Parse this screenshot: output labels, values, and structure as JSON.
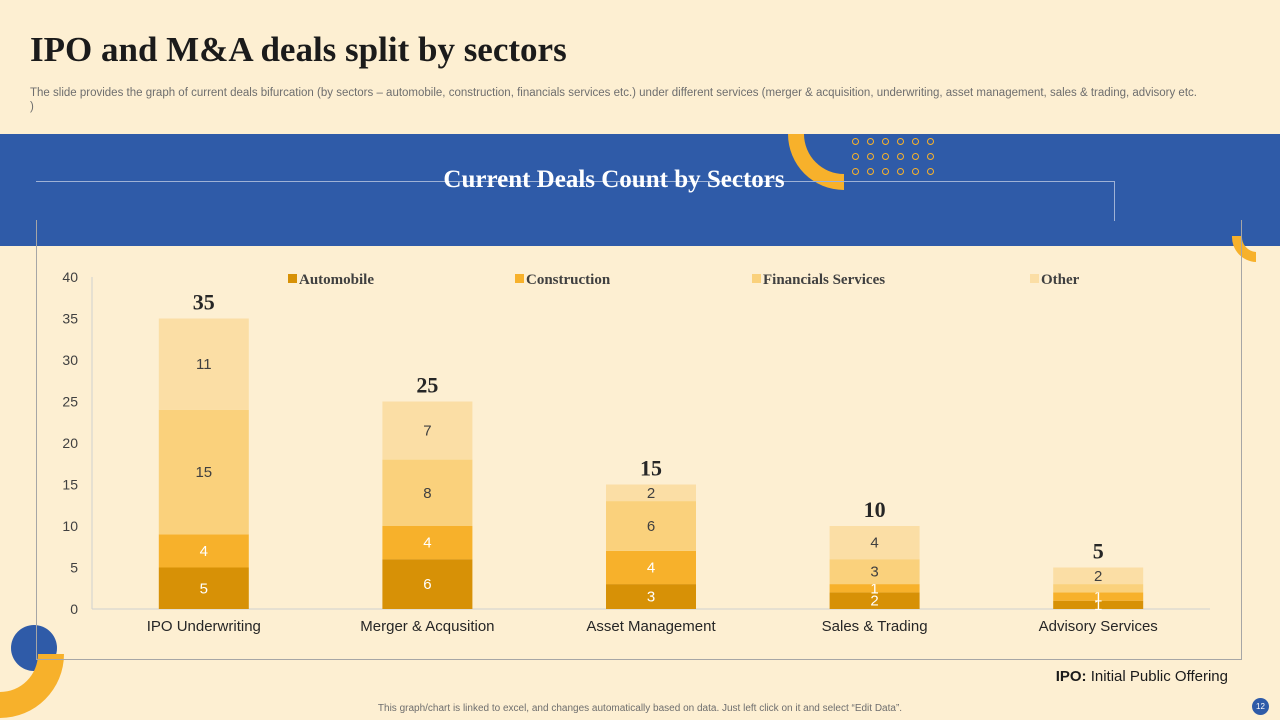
{
  "slide": {
    "title": "IPO and M&A deals split by sectors",
    "subtitle": "The slide provides the graph of current deals bifurcation (by sectors – automobile, construction, financials services etc.) under different services (merger & acquisition, underwriting, asset management, sales & trading, advisory etc. )",
    "footnote_abbr": "IPO:",
    "footnote_text": "Initial Public Offering",
    "bottom_note": "This graph/chart is linked to excel, and changes automatically based on data. Just left click on it and select “Edit Data”.",
    "page_number": "12"
  },
  "colors": {
    "background": "#fdefd2",
    "band": "#2f5ba8",
    "accent": "#f7b12b",
    "automobile": "#d79106",
    "construction": "#f7b12b",
    "financials": "#fad17c",
    "other": "#fbdea5"
  },
  "chart_data": {
    "type": "bar",
    "stacked": true,
    "title": "Current Deals Count by Sectors",
    "xlabel": "",
    "ylabel": "",
    "ylim": [
      0,
      40
    ],
    "yticks": [
      "0",
      "5",
      "10",
      "15",
      "20",
      "25",
      "30",
      "35",
      "40"
    ],
    "grid": false,
    "legend_position": "top",
    "categories": [
      "IPO Underwriting",
      "Merger & Acqusition",
      "Asset Management",
      "Sales & Trading",
      "Advisory Services"
    ],
    "series": [
      {
        "name": "Automobile",
        "values": [
          5,
          6,
          3,
          2,
          1
        ],
        "labels": [
          "5",
          "6",
          "3",
          "2",
          "1"
        ]
      },
      {
        "name": "Construction",
        "values": [
          4,
          4,
          4,
          1,
          1
        ],
        "labels": [
          "4",
          "4",
          "4",
          "1",
          "1"
        ]
      },
      {
        "name": "Financials Services",
        "values": [
          15,
          8,
          6,
          3,
          1
        ],
        "labels": [
          "15",
          "8",
          "6",
          "3",
          ""
        ]
      },
      {
        "name": "Other",
        "values": [
          11,
          7,
          2,
          4,
          2
        ],
        "labels": [
          "11",
          "7",
          "2",
          "4",
          "2"
        ]
      }
    ],
    "totals": [
      "35",
      "25",
      "15",
      "10",
      "5"
    ]
  }
}
